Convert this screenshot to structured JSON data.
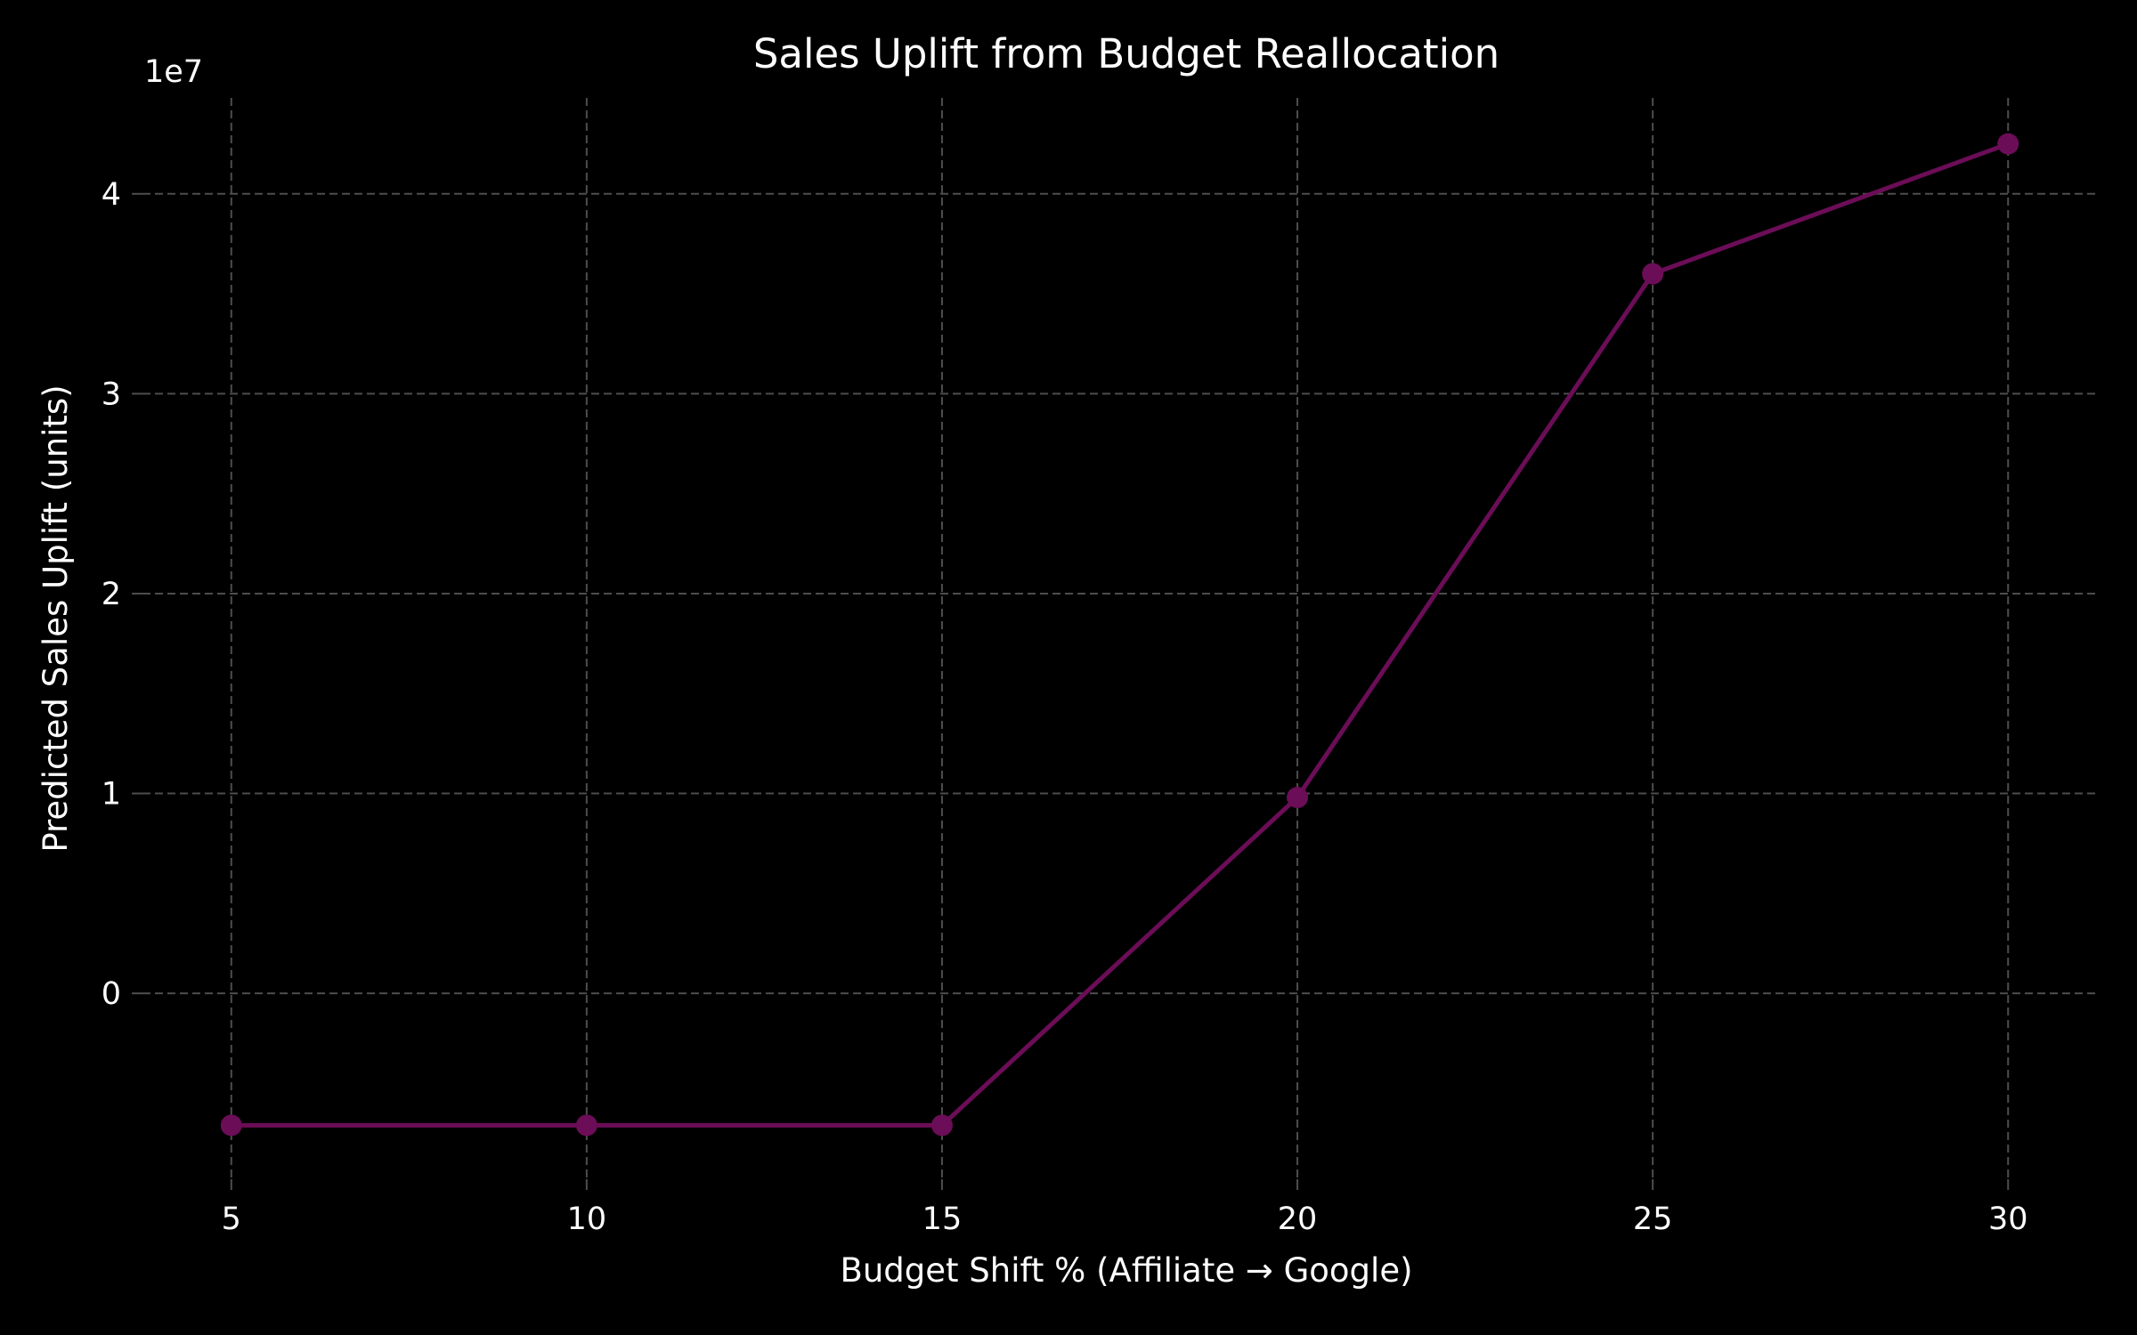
{
  "chart_data": {
    "type": "line",
    "title": "Sales Uplift from Budget Reallocation",
    "xlabel": "Budget Shift % (Affiliate → Google)",
    "ylabel": "Predicted Sales Uplift (units)",
    "y_offset_label": "1e7",
    "x_ticks": [
      5,
      10,
      15,
      20,
      25,
      30
    ],
    "y_ticks": [
      0,
      1,
      2,
      3,
      4
    ],
    "y_tick_multiplier": 10000000,
    "xlim": [
      3.75,
      31.25
    ],
    "ylim": [
      -9300000,
      44800000
    ],
    "grid": true,
    "x": [
      5,
      10,
      15,
      20,
      25,
      30
    ],
    "series": [
      {
        "values": [
          -6600000,
          -6600000,
          -6600000,
          9800000,
          36000000,
          42500000
        ],
        "color": "#6b0d57"
      }
    ]
  },
  "colors": {
    "background": "#000000",
    "text": "#ffffff",
    "grid": "#4d4d4d"
  }
}
